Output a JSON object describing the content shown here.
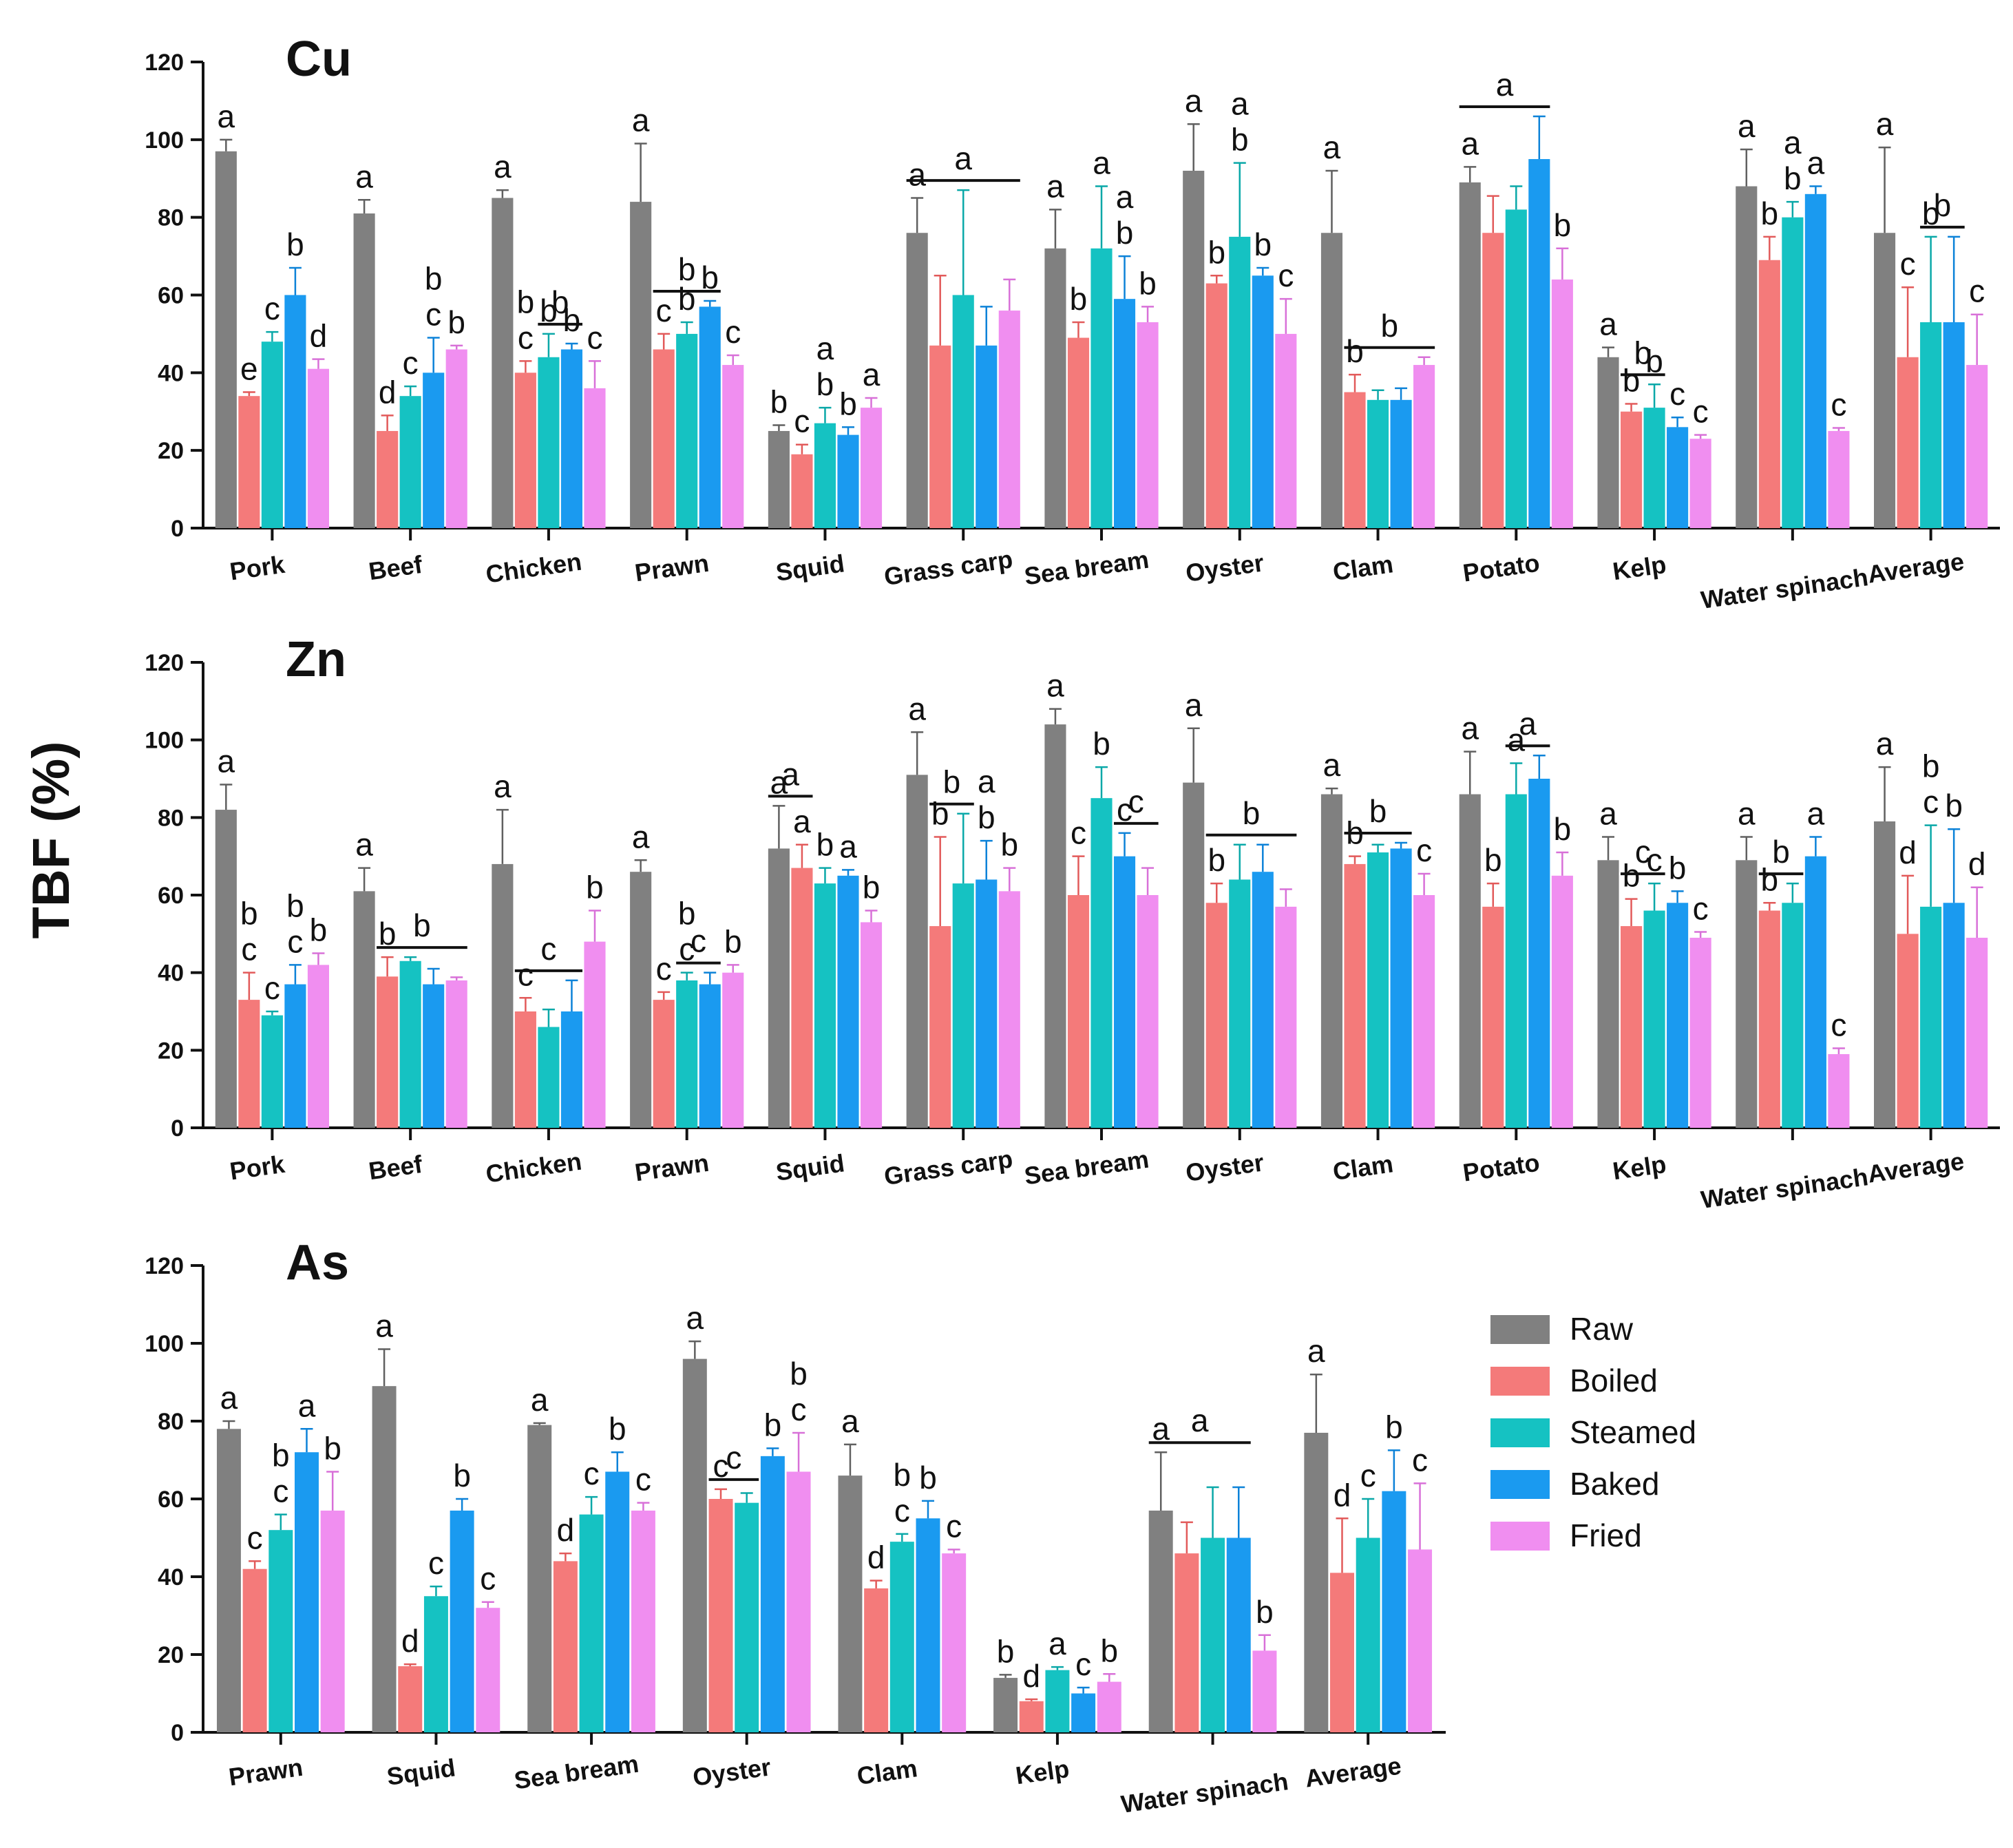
{
  "ylabel": "TBF (%)",
  "legend": [
    {
      "name": "Raw",
      "color": "#808080"
    },
    {
      "name": "Boiled",
      "color": "#f47a7a"
    },
    {
      "name": "Steamed",
      "color": "#15c2c2"
    },
    {
      "name": "Baked",
      "color": "#1a9af0"
    },
    {
      "name": "Fried",
      "color": "#f08ef0"
    }
  ],
  "chart_data": [
    {
      "type": "bar",
      "title": "Cu",
      "ylabel": "TBF (%)",
      "ylim": [
        0,
        120
      ],
      "yticks": [
        "0",
        "20",
        "40",
        "60",
        "80",
        "100",
        "120"
      ],
      "categories": [
        "Pork",
        "Beef",
        "Chicken",
        "Prawn",
        "Squid",
        "Grass carp",
        "Sea bream",
        "Oyster",
        "Clam",
        "Potato",
        "Kelp",
        "Water spinach",
        "Average"
      ],
      "series": [
        {
          "name": "Raw",
          "values": [
            97,
            81,
            85,
            84,
            25,
            76,
            72,
            92,
            76,
            89,
            44,
            88,
            76
          ],
          "errors": [
            3,
            3.5,
            2,
            15,
            1.5,
            9,
            10,
            12,
            16,
            4,
            2.5,
            9.5,
            22
          ]
        },
        {
          "name": "Boiled",
          "values": [
            34,
            25,
            40,
            46,
            19,
            47,
            49,
            63,
            35,
            76,
            30,
            69,
            44
          ],
          "errors": [
            1,
            4,
            3,
            4,
            2.5,
            18,
            4,
            2,
            4.5,
            9.5,
            2,
            6,
            18
          ]
        },
        {
          "name": "Steamed",
          "values": [
            48,
            34,
            44,
            50,
            27,
            60,
            72,
            75,
            33,
            82,
            31,
            80,
            53
          ],
          "errors": [
            2.5,
            2.5,
            6,
            3,
            4,
            27,
            16,
            19,
            2.5,
            6,
            6,
            4,
            22
          ]
        },
        {
          "name": "Baked",
          "values": [
            60,
            40,
            46,
            57,
            24,
            47,
            59,
            65,
            33,
            95,
            26,
            86,
            53
          ],
          "errors": [
            7,
            9,
            1.5,
            1.5,
            2,
            10,
            11,
            2,
            3,
            11,
            2.5,
            2,
            22
          ]
        },
        {
          "name": "Fried",
          "values": [
            41,
            46,
            36,
            42,
            31,
            56,
            53,
            50,
            42,
            64,
            23,
            25,
            42
          ],
          "errors": [
            2.5,
            1,
            7,
            2.5,
            2.5,
            8,
            4,
            9,
            2,
            8,
            1,
            0.8,
            13
          ]
        }
      ],
      "significance": [
        [
          "a",
          "e",
          "c",
          "b",
          "d"
        ],
        [
          "a",
          "d",
          "c",
          "b\nc",
          "b"
        ],
        [
          "a",
          "b\nc",
          "b",
          "b",
          "c"
        ],
        [
          "a",
          "c",
          "b",
          "b",
          "c"
        ],
        [
          "b",
          "c",
          "a\nb",
          "b",
          "a"
        ],
        [
          "a",
          "",
          "",
          "",
          ""
        ],
        [
          "a",
          "b",
          "a",
          "a\nb",
          "b"
        ],
        [
          "a",
          "b",
          "a\nb",
          "b",
          "c"
        ],
        [
          "a",
          "b",
          "",
          "",
          ""
        ],
        [
          "a",
          "",
          "",
          "",
          "b"
        ],
        [
          "a",
          "b",
          "b",
          "c",
          "c"
        ],
        [
          "a",
          "b",
          "a\nb",
          "a",
          "c"
        ],
        [
          "a",
          "c",
          "b",
          "",
          "c"
        ]
      ],
      "group_bars": [
        {
          "category": 2,
          "from": 2,
          "to": 3,
          "label_index": 2
        },
        {
          "category": 3,
          "from": 1,
          "to": 3,
          "label_index": 2
        },
        {
          "category": 5,
          "from": 0,
          "to": 4,
          "label_index": 0
        },
        {
          "category": 8,
          "from": 1,
          "to": 4,
          "label_index": 1
        },
        {
          "category": 9,
          "from": 0,
          "to": 3,
          "label_index": 0
        },
        {
          "category": 10,
          "from": 1,
          "to": 2,
          "label_index": 1
        },
        {
          "category": 12,
          "from": 2,
          "to": 3,
          "label_index": 2
        }
      ]
    },
    {
      "type": "bar",
      "title": "Zn",
      "ylabel": "TBF (%)",
      "ylim": [
        0,
        120
      ],
      "yticks": [
        "0",
        "20",
        "40",
        "60",
        "80",
        "100",
        "120"
      ],
      "categories": [
        "Pork",
        "Beef",
        "Chicken",
        "Prawn",
        "Squid",
        "Grass carp",
        "Sea bream",
        "Oyster",
        "Clam",
        "Potato",
        "Kelp",
        "Water spinach",
        "Average"
      ],
      "series": [
        {
          "name": "Raw",
          "values": [
            82,
            61,
            68,
            66,
            72,
            91,
            104,
            89,
            86,
            86,
            69,
            69,
            79
          ],
          "errors": [
            6.5,
            6,
            14,
            3,
            11,
            11,
            4,
            14,
            1.5,
            11,
            6,
            6,
            14
          ]
        },
        {
          "name": "Boiled",
          "values": [
            33,
            39,
            30,
            33,
            67,
            52,
            60,
            58,
            68,
            57,
            52,
            56,
            50
          ],
          "errors": [
            7,
            5,
            3.5,
            2,
            6,
            23,
            10,
            5,
            2,
            6,
            7,
            2,
            15
          ]
        },
        {
          "name": "Steamed",
          "values": [
            29,
            43,
            26,
            38,
            63,
            63,
            85,
            64,
            71,
            86,
            56,
            58,
            57
          ],
          "errors": [
            1,
            1,
            4.5,
            2,
            4,
            18,
            8,
            9,
            2,
            8,
            7,
            5,
            21
          ]
        },
        {
          "name": "Baked",
          "values": [
            37,
            37,
            30,
            37,
            65,
            64,
            70,
            66,
            72,
            90,
            58,
            70,
            58
          ],
          "errors": [
            5,
            4,
            8,
            3,
            1.5,
            10,
            6,
            7,
            1.5,
            6,
            3,
            5,
            19
          ]
        },
        {
          "name": "Fried",
          "values": [
            42,
            38,
            48,
            40,
            53,
            61,
            60,
            57,
            60,
            65,
            49,
            19,
            49
          ],
          "errors": [
            3,
            0.8,
            8,
            2,
            3,
            6,
            7,
            4.5,
            5.5,
            6,
            1.5,
            1.5,
            13
          ]
        }
      ],
      "significance": [
        [
          "a",
          "b\nc",
          "c",
          "b\nc",
          "b"
        ],
        [
          "a",
          "b",
          "",
          "",
          ""
        ],
        [
          "a",
          "c",
          "",
          "",
          "b"
        ],
        [
          "a",
          "c",
          "b\nc",
          "",
          "b"
        ],
        [
          "a",
          "a",
          "b",
          "a",
          "b"
        ],
        [
          "a",
          "b",
          "",
          "a\nb",
          "b"
        ],
        [
          "a",
          "c",
          "b",
          "c",
          ""
        ],
        [
          "a",
          "b",
          "",
          "",
          ""
        ],
        [
          "a",
          "b",
          "",
          "",
          "c"
        ],
        [
          "a",
          "b",
          "a",
          "",
          "b"
        ],
        [
          "a",
          "b",
          "c",
          "b",
          "c"
        ],
        [
          "a",
          "b",
          "",
          "a",
          "c"
        ],
        [
          "a",
          "d",
          "b\nc",
          "b",
          "d"
        ]
      ],
      "group_bars": [
        {
          "category": 1,
          "from": 1,
          "to": 4,
          "label_index": 1
        },
        {
          "category": 2,
          "from": 1,
          "to": 3,
          "label_index": 1
        },
        {
          "category": 3,
          "from": 2,
          "to": 3,
          "label_index": 2
        },
        {
          "category": 4,
          "from": 0,
          "to": 1,
          "label_index": 0
        },
        {
          "category": 5,
          "from": 1,
          "to": 2,
          "label_index": 1
        },
        {
          "category": 6,
          "from": 3,
          "to": 4,
          "label_index": 3
        },
        {
          "category": 7,
          "from": 1,
          "to": 4,
          "label_index": 1
        },
        {
          "category": 8,
          "from": 1,
          "to": 3,
          "label_index": 1
        },
        {
          "category": 9,
          "from": 2,
          "to": 3,
          "label_index": 2
        },
        {
          "category": 10,
          "from": 1,
          "to": 2,
          "label_index": 2
        },
        {
          "category": 11,
          "from": 1,
          "to": 2,
          "label_index": 1
        }
      ]
    },
    {
      "type": "bar",
      "title": "As",
      "ylabel": "TBF (%)",
      "ylim": [
        0,
        120
      ],
      "yticks": [
        "0",
        "20",
        "40",
        "60",
        "80",
        "100",
        "120"
      ],
      "categories": [
        "Prawn",
        "Squid",
        "Sea bream",
        "Oyster",
        "Clam",
        "Kelp",
        "Water spinach",
        "Average"
      ],
      "series": [
        {
          "name": "Raw",
          "values": [
            78,
            89,
            79,
            96,
            66,
            14,
            57,
            77
          ],
          "errors": [
            2,
            9.5,
            0.5,
            4.5,
            8,
            0.8,
            15,
            15
          ]
        },
        {
          "name": "Boiled",
          "values": [
            42,
            17,
            44,
            60,
            37,
            8,
            46,
            41
          ],
          "errors": [
            2,
            0.5,
            2,
            2.5,
            2,
            0.5,
            8,
            14
          ]
        },
        {
          "name": "Steamed",
          "values": [
            52,
            35,
            56,
            59,
            49,
            16,
            50,
            50
          ],
          "errors": [
            4,
            2.5,
            4.5,
            2.5,
            2,
            0.8,
            13,
            10
          ]
        },
        {
          "name": "Baked",
          "values": [
            72,
            57,
            67,
            71,
            55,
            10,
            50,
            62
          ],
          "errors": [
            6,
            3,
            5,
            2,
            4.5,
            1.5,
            13,
            10.5
          ]
        },
        {
          "name": "Fried",
          "values": [
            57,
            32,
            57,
            67,
            46,
            13,
            21,
            47
          ],
          "errors": [
            10,
            1.5,
            2,
            10,
            1,
            2,
            4,
            17
          ]
        }
      ],
      "significance": [
        [
          "a",
          "c",
          "b\nc",
          "a",
          "b"
        ],
        [
          "a",
          "d",
          "c",
          "b",
          "c"
        ],
        [
          "a",
          "d",
          "c",
          "b",
          "c"
        ],
        [
          "a",
          "c",
          "",
          "b",
          "b\nc"
        ],
        [
          "a",
          "d",
          "b\nc",
          "b",
          "c"
        ],
        [
          "b",
          "d",
          "a",
          "c",
          "b"
        ],
        [
          "a",
          "",
          "",
          "",
          "b"
        ],
        [
          "a",
          "d",
          "c",
          "b",
          "c"
        ]
      ],
      "group_bars": [
        {
          "category": 3,
          "from": 1,
          "to": 2,
          "label_index": 1
        },
        {
          "category": 6,
          "from": 0,
          "to": 3,
          "label_index": 0
        }
      ]
    }
  ]
}
